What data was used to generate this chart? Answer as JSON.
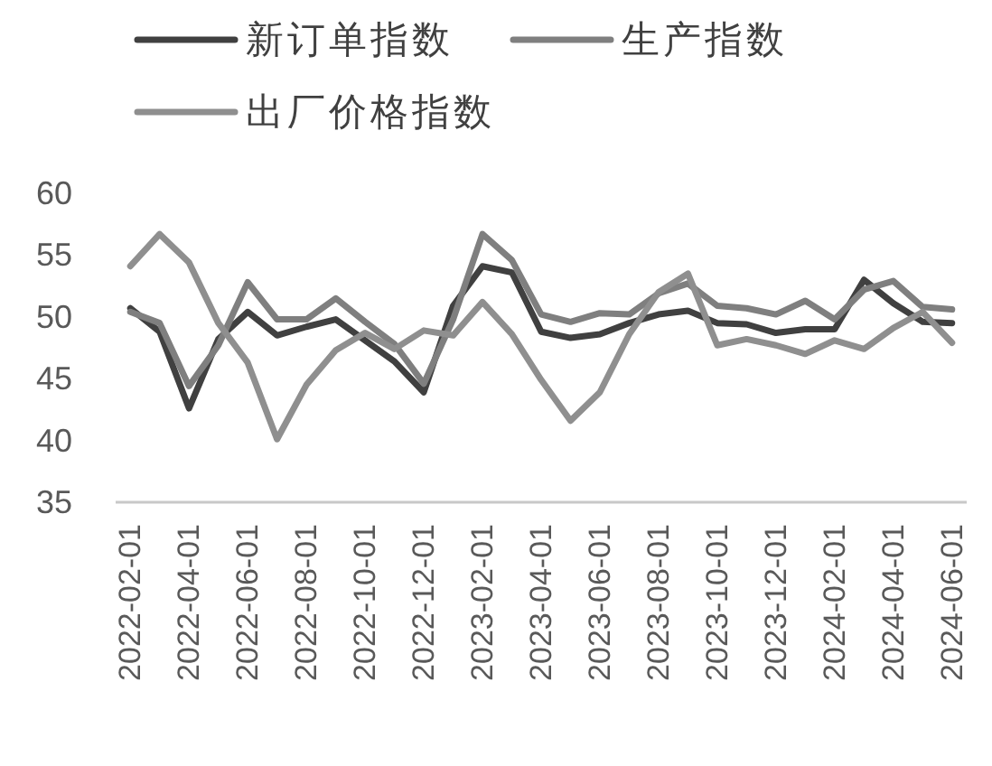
{
  "chart_data": {
    "type": "line",
    "categories": [
      "2022-02-01",
      null,
      "2022-04-01",
      null,
      "2022-06-01",
      null,
      "2022-08-01",
      null,
      "2022-10-01",
      null,
      "2022-12-01",
      null,
      "2023-02-01",
      null,
      "2023-04-01",
      null,
      "2023-06-01",
      null,
      "2023-08-01",
      null,
      "2023-10-01",
      null,
      "2023-12-01",
      null,
      "2024-02-01",
      null,
      "2024-04-01",
      null,
      "2024-06-01"
    ],
    "series": [
      {
        "name": "新订单指数",
        "color": "#404040",
        "values": [
          50.7,
          48.8,
          42.6,
          48.2,
          50.4,
          48.5,
          49.2,
          49.8,
          48.1,
          46.4,
          43.9,
          50.9,
          54.1,
          53.6,
          48.8,
          48.3,
          48.6,
          49.5,
          50.2,
          50.5,
          49.5,
          49.4,
          48.7,
          49.0,
          49.0,
          53.0,
          51.1,
          49.6,
          49.5
        ]
      },
      {
        "name": "生产指数",
        "color": "#7f7f7f",
        "values": [
          50.4,
          49.5,
          44.4,
          47.7,
          52.8,
          49.8,
          49.8,
          51.5,
          49.6,
          47.8,
          44.6,
          49.8,
          56.7,
          54.6,
          50.2,
          49.6,
          50.3,
          50.2,
          51.9,
          52.7,
          50.9,
          50.7,
          50.2,
          51.3,
          49.8,
          52.2,
          52.9,
          50.8,
          50.6
        ]
      },
      {
        "name": "出厂价格指数",
        "color": "#8f8f8f",
        "values": [
          54.1,
          56.7,
          54.4,
          49.5,
          46.3,
          40.1,
          44.5,
          47.3,
          48.7,
          47.4,
          48.9,
          48.5,
          51.2,
          48.6,
          44.9,
          41.6,
          43.9,
          48.6,
          52.0,
          53.5,
          47.7,
          48.2,
          47.7,
          47.0,
          48.1,
          47.4,
          49.1,
          50.4,
          47.9
        ]
      }
    ],
    "ylim": [
      35,
      60
    ],
    "yticks": [
      35,
      40,
      45,
      50,
      55,
      60
    ],
    "legend": "top"
  }
}
